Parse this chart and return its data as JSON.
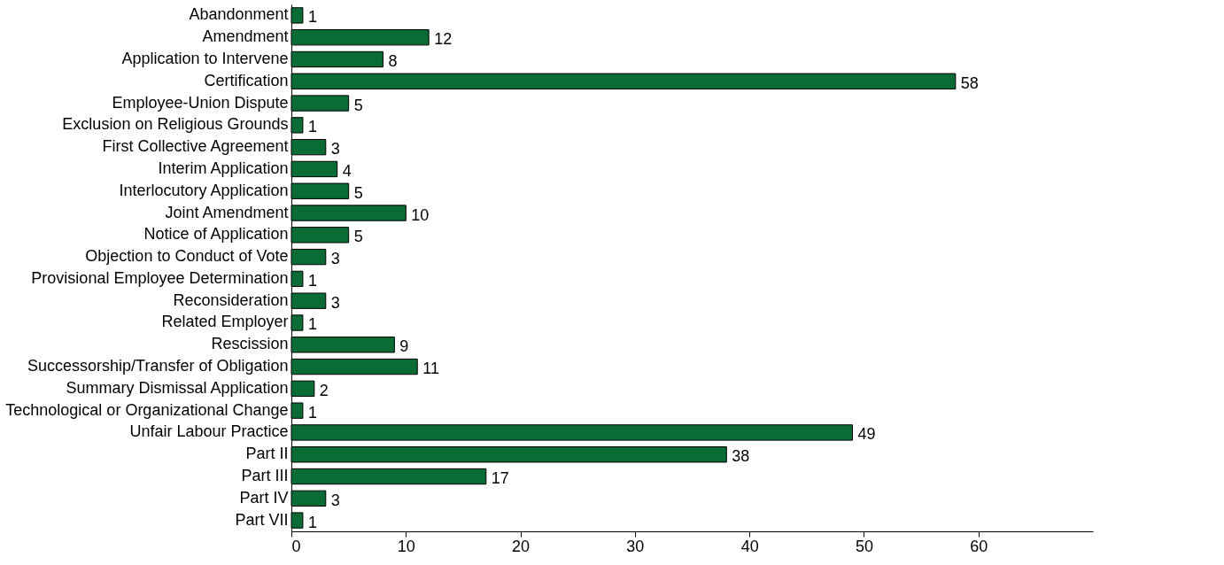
{
  "chart_data": {
    "type": "bar",
    "orientation": "horizontal",
    "categories": [
      "Abandonment",
      "Amendment",
      "Application to Intervene",
      "Certification",
      "Employee-Union Dispute",
      "Exclusion on Religious Grounds",
      "First Collective Agreement",
      "Interim Application",
      "Interlocutory Application",
      "Joint Amendment",
      "Notice of Application",
      "Objection to Conduct of Vote",
      "Provisional Employee Determination",
      "Reconsideration",
      "Related Employer",
      "Rescission",
      "Successorship/Transfer of Obligation",
      "Summary Dismissal Application",
      "Technological or Organizational Change",
      "Unfair Labour Practice",
      "Part II",
      "Part III",
      "Part IV",
      "Part VII"
    ],
    "values": [
      1,
      12,
      8,
      58,
      5,
      1,
      3,
      4,
      5,
      10,
      5,
      3,
      1,
      3,
      1,
      9,
      11,
      2,
      1,
      49,
      38,
      17,
      3,
      1
    ],
    "color": "#0b6b35",
    "xlim": [
      0,
      70
    ],
    "xticks": [
      0,
      10,
      20,
      30,
      40,
      50,
      60
    ],
    "grid": false,
    "data_labels": true
  }
}
